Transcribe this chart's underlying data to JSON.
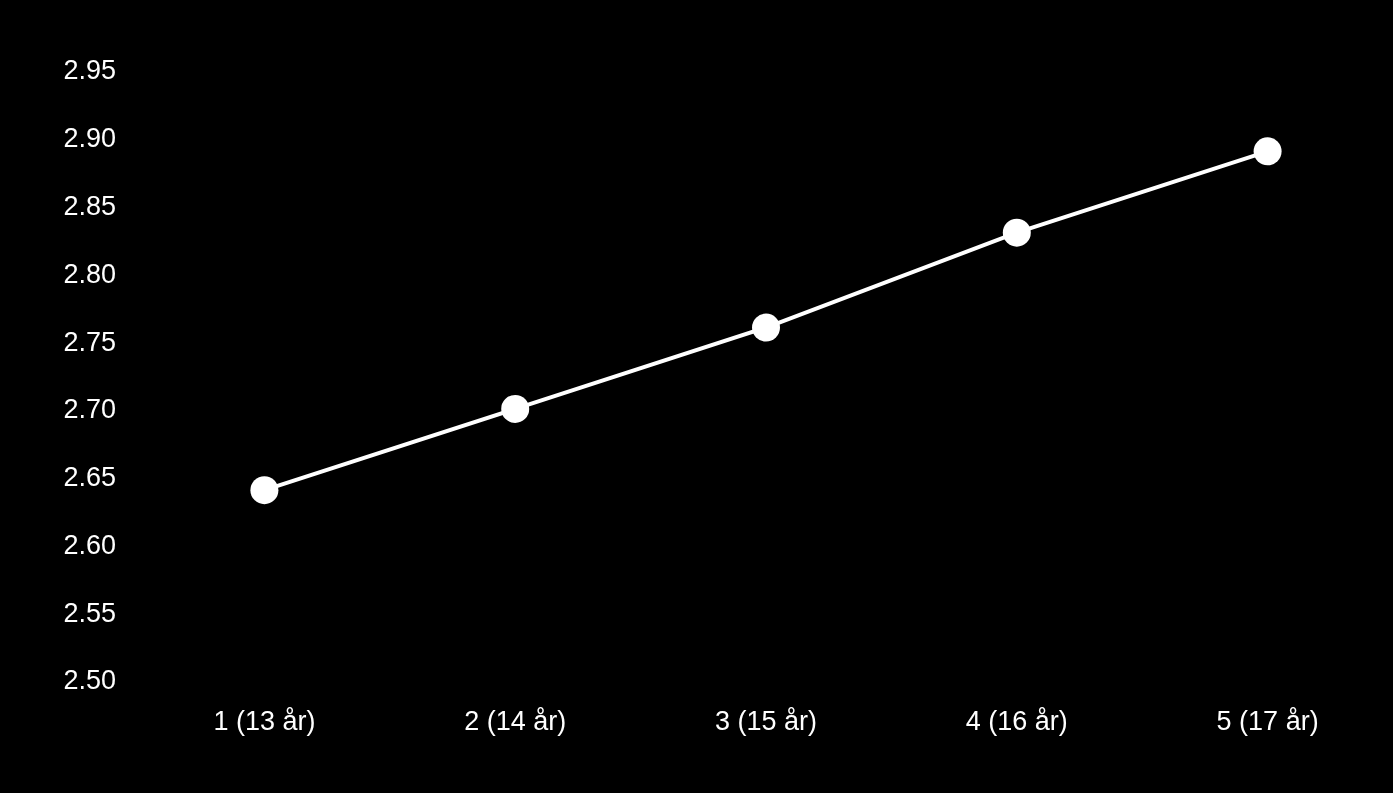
{
  "chart_data": {
    "type": "line",
    "categories": [
      "1 (13 år)",
      "2 (14 år)",
      "3 (15 år)",
      "4 (16 år)",
      "5 (17 år)"
    ],
    "series": [
      {
        "color": "#ffffff",
        "values": [
          2.64,
          2.7,
          2.76,
          2.83,
          2.89
        ]
      }
    ],
    "ylim": [
      2.5,
      2.95
    ],
    "yticks": [
      {
        "value": 2.5,
        "label": "2.50"
      },
      2.55,
      {
        "value": 2.6,
        "label": "2.60"
      },
      2.65,
      {
        "value": 2.7,
        "label": "2.70"
      },
      2.75,
      {
        "value": 2.8,
        "label": "2.80"
      },
      2.85,
      {
        "value": 2.9,
        "label": "2.90"
      },
      2.95
    ],
    "grid": false,
    "marker": "circle",
    "line_style": "solid"
  }
}
